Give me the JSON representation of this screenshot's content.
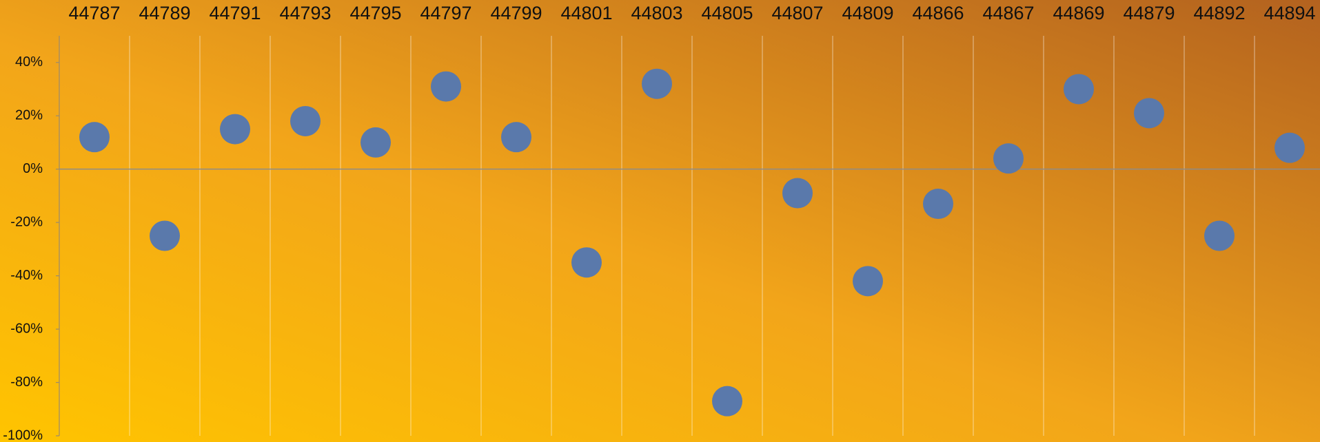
{
  "chart_data": {
    "type": "scatter",
    "categories": [
      "44787",
      "44789",
      "44791",
      "44793",
      "44795",
      "44797",
      "44799",
      "44801",
      "44803",
      "44805",
      "44807",
      "44809",
      "44866",
      "44867",
      "44869",
      "44879",
      "44892",
      "44894"
    ],
    "values": [
      12,
      -25,
      15,
      18,
      10,
      31,
      12,
      -35,
      32,
      -87,
      -9,
      -42,
      -13,
      4,
      30,
      21,
      -25,
      8
    ],
    "color": "#5a79ab",
    "ylim": [
      -100,
      50
    ],
    "yticks": [
      {
        "value": -100,
        "label": "-100%"
      },
      {
        "value": -80,
        "label": "-80%"
      },
      {
        "value": -60,
        "label": "-60%"
      },
      {
        "value": -40,
        "label": "-40%"
      },
      {
        "value": -20,
        "label": "-20%"
      },
      {
        "value": 0,
        "label": "0%"
      },
      {
        "value": 20,
        "label": "20%"
      },
      {
        "value": 40,
        "label": "40%"
      }
    ],
    "grid": false
  }
}
